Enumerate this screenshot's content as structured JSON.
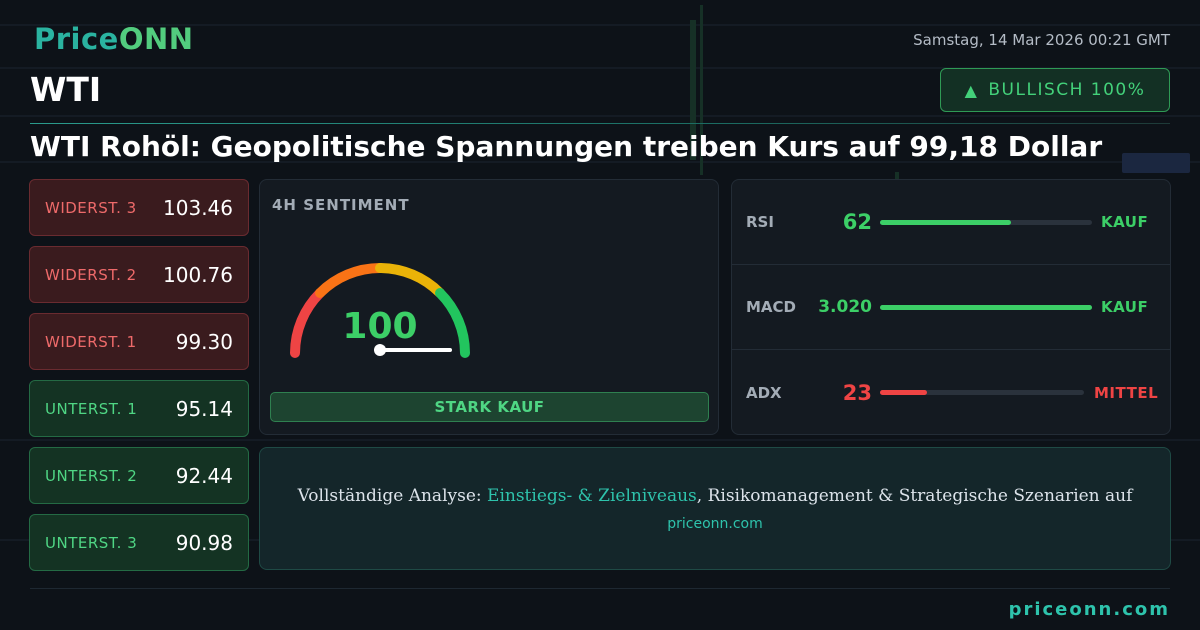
{
  "brand": {
    "logo_part1": "Price",
    "logo_part2": "ONN"
  },
  "header": {
    "date": "Samstag, 14 Mar 2026 00:21 GMT",
    "symbol": "WTI",
    "trend_label": "BULLISCH 100%",
    "headline": "WTI Rohöl: Geopolitische Spannungen treiben Kurs auf 99,18 Dollar"
  },
  "levels": [
    {
      "type": "resistance",
      "label": "WIDERST. 3",
      "value": "103.46"
    },
    {
      "type": "resistance",
      "label": "WIDERST. 2",
      "value": "100.76"
    },
    {
      "type": "resistance",
      "label": "WIDERST. 1",
      "value": "99.30"
    },
    {
      "type": "support",
      "label": "UNTERST. 1",
      "value": "95.14"
    },
    {
      "type": "support",
      "label": "UNTERST. 2",
      "value": "92.44"
    },
    {
      "type": "support",
      "label": "UNTERST. 3",
      "value": "90.98"
    }
  ],
  "sentiment": {
    "title": "4H SENTIMENT",
    "value": "100",
    "gauge_level": 1.0,
    "verdict": "STARK KAUF"
  },
  "indicators": [
    {
      "name": "RSI",
      "value": "62",
      "fill_fraction": 0.62,
      "signal": "KAUF",
      "color": "#3ccf67"
    },
    {
      "name": "MACD",
      "value": "3.020",
      "fill_fraction": 1.0,
      "signal": "KAUF",
      "color": "#3ccf67"
    },
    {
      "name": "ADX",
      "value": "23",
      "fill_fraction": 0.23,
      "signal": "MITTEL",
      "color": "#ef4444"
    }
  ],
  "promo": {
    "prefix": "Vollständige Analyse: ",
    "highlight": "Einstiegs- & Zielniveaus",
    "suffix": ", Risikomanagement & Strategische Szenarien auf",
    "link": "priceonn.com"
  },
  "footer": {
    "url": "priceonn.com"
  },
  "colors": {
    "accent": "#2ec3ac",
    "bullish": "#3ccf67",
    "bearish": "#ef4444",
    "background": "#0d1218"
  }
}
